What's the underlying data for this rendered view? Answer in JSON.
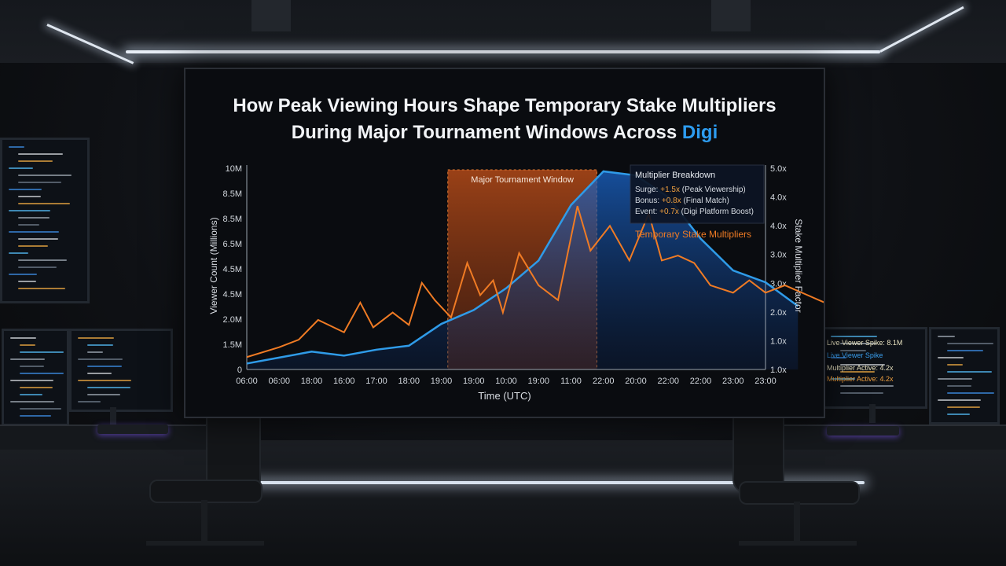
{
  "chart_data": {
    "type": "line",
    "title_line1": "How Peak Viewing Hours Shape Temporary Stake Multipliers",
    "title_line2_prefix": "During Major Tournament Windows Across ",
    "title_brand": "Digi",
    "xlabel": "Time (UTC)",
    "ylabel_left": "Viewer Count (Millions)",
    "ylabel_right": "Stake Multiplier Factor",
    "x_ticks": [
      "06:00",
      "06:00",
      "18:00",
      "16:00",
      "17:00",
      "18:00",
      "19:00",
      "19:00",
      "10:00",
      "19:00",
      "11:00",
      "22:00",
      "20:00",
      "22:00",
      "22:00",
      "23:00",
      "23:00"
    ],
    "y_left_ticks": [
      "0",
      "1.5M",
      "2.0M",
      "4.5M",
      "4.5M",
      "6.5M",
      "8.5M",
      "8.5M",
      "10M"
    ],
    "y_right_ticks": [
      "1.0x",
      "1.0x",
      "2.0x",
      "3.0x",
      "3.0x",
      "4.0x",
      "4.0x",
      "5.0x"
    ],
    "ylim_left": [
      0,
      10
    ],
    "ylim_right": [
      0,
      8
    ],
    "highlight": {
      "label": "Major Tournament Window",
      "x_start": 6.2,
      "x_end": 10.8
    },
    "series": [
      {
        "name": "Viewer Count",
        "color": "#2f9be8",
        "x": [
          0,
          1,
          2,
          3,
          4,
          5,
          6,
          7,
          8,
          9,
          10,
          11,
          12,
          13,
          14,
          15,
          16,
          17
        ],
        "values": [
          0.3,
          0.6,
          0.9,
          0.7,
          1.0,
          1.2,
          2.3,
          3.0,
          4.1,
          5.5,
          8.3,
          10.0,
          9.8,
          8.7,
          6.6,
          5.0,
          4.4,
          3.2
        ]
      },
      {
        "name": "Temporary Stake Multipliers",
        "color": "#f07b24",
        "x": [
          0,
          1,
          1.6,
          2.2,
          3,
          3.5,
          3.9,
          4.5,
          5,
          5.4,
          5.8,
          6.3,
          6.8,
          7.2,
          7.6,
          7.9,
          8.4,
          9,
          9.6,
          10.2,
          10.6,
          11.2,
          11.8,
          12.4,
          12.8,
          13.3,
          13.8,
          14.3,
          15,
          15.5,
          16,
          16.6,
          17.3,
          18
        ],
        "values": [
          0.5,
          0.9,
          1.2,
          2.0,
          1.5,
          2.7,
          1.7,
          2.3,
          1.8,
          3.5,
          2.8,
          2.1,
          4.3,
          3.0,
          3.6,
          2.3,
          4.7,
          3.4,
          2.8,
          6.6,
          4.8,
          5.8,
          4.4,
          6.3,
          4.4,
          4.6,
          4.3,
          3.4,
          3.1,
          3.6,
          3.1,
          3.4,
          3.0,
          2.6
        ]
      }
    ],
    "legend": {
      "title": "Multiplier Breakdown",
      "rows": [
        {
          "key": "Surge:",
          "val": "+1.5x",
          "desc": "(Peak Viewership)"
        },
        {
          "key": "Bonus:",
          "val": "+0.8x",
          "desc": "(Final Match)"
        },
        {
          "key": "Event:",
          "val": "+0.7x",
          "desc": "(Digi Platform Boost)"
        }
      ],
      "series_label": "Temporary Stake Multipliers"
    },
    "grid": false,
    "legend_placement": "top-right"
  },
  "right_panel": {
    "line1": "Live Viewer Spike: 8.1M",
    "line2": "Live Viewer Spike",
    "line3": "Multiplier Active: 4.2x",
    "line4": "Multiplier Active: 4.2x"
  },
  "colors": {
    "viewer_line": "#2f9be8",
    "multiplier_line": "#f07b24",
    "brand": "#2d9cf0",
    "window_fill": "#a5431a"
  }
}
